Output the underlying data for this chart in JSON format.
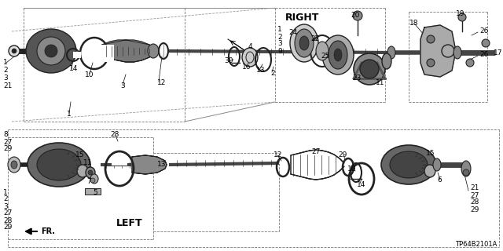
{
  "bg_color": "#ffffff",
  "fig_width": 6.4,
  "fig_height": 3.2,
  "dpi": 100,
  "right_label": "RIGHT",
  "left_label": "LEFT",
  "fr_label": "FR.",
  "code_label": "TP64B2101A",
  "line_color": "#000000",
  "text_color": "#000000",
  "dark_gray": "#222222",
  "mid_gray": "#666666",
  "light_gray": "#aaaaaa",
  "font_size_bold": 8,
  "font_size_num": 6.5,
  "font_size_code": 6
}
